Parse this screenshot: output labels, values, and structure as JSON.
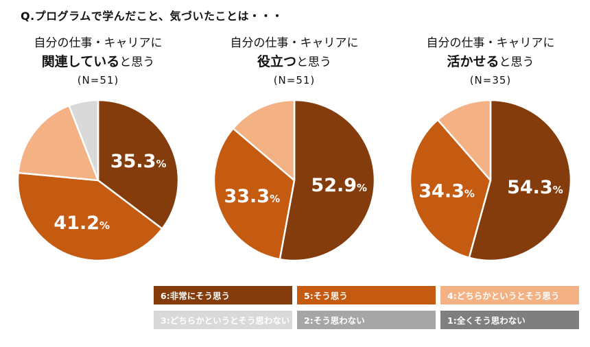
{
  "page": {
    "title": "Q.プログラムで学んだこと、気づいたことは・・・"
  },
  "chart_data": [
    {
      "type": "pie",
      "title_line1": "自分の仕事・キャリアに",
      "title_bold": "関連している",
      "title_suffix": "と思う",
      "n_label": "(N=51)",
      "n": 51,
      "start_angle": "top",
      "direction": "clockwise",
      "slices": [
        {
          "legend": "6:非常にそう思う",
          "value": 35.3,
          "display": "35.3",
          "color": "#843C0C"
        },
        {
          "legend": "5:そう思う",
          "value": 41.2,
          "display": "41.2",
          "color": "#C55A11"
        },
        {
          "legend": "4:どちらかというとそう思う",
          "value": 17.6,
          "color": "#F4B183"
        },
        {
          "legend": "3:どちらかというとそう思わない",
          "value": 5.9,
          "color": "#D9D9D9"
        }
      ]
    },
    {
      "type": "pie",
      "title_line1": "自分の仕事・キャリアに",
      "title_bold": "役立つ",
      "title_suffix": "と思う",
      "n_label": "(N=51)",
      "n": 51,
      "start_angle": "top",
      "direction": "clockwise",
      "slices": [
        {
          "legend": "6:非常にそう思う",
          "value": 52.9,
          "display": "52.9",
          "color": "#843C0C"
        },
        {
          "legend": "5:そう思う",
          "value": 33.3,
          "display": "33.3",
          "color": "#C55A11"
        },
        {
          "legend": "4:どちらかというとそう思う",
          "value": 13.8,
          "color": "#F4B183"
        }
      ]
    },
    {
      "type": "pie",
      "title_line1": "自分の仕事・キャリアに",
      "title_bold": "活かせる",
      "title_suffix": "と思う",
      "n_label": "(N=35)",
      "n": 35,
      "start_angle": "top",
      "direction": "clockwise",
      "slices": [
        {
          "legend": "6:非常にそう思う",
          "value": 54.3,
          "display": "54.3",
          "color": "#843C0C"
        },
        {
          "legend": "5:そう思う",
          "value": 34.3,
          "display": "34.3",
          "color": "#C55A11"
        },
        {
          "legend": "4:どちらかというとそう思う",
          "value": 11.4,
          "color": "#F4B183"
        }
      ]
    }
  ],
  "legend": {
    "items": [
      {
        "key": "6",
        "label": "6:非常にそう思う",
        "color": "#843C0C",
        "text_color": "#FFFFFF"
      },
      {
        "key": "5",
        "label": "5:そう思う",
        "color": "#C55A11",
        "text_color": "#FFFFFF"
      },
      {
        "key": "4",
        "label": "4:どちらかというとそう思う",
        "color": "#F4B183",
        "text_color": "#FFFFFF"
      },
      {
        "key": "3",
        "label": "3:どちらかというとそう思わない",
        "color": "#D9D9D9",
        "text_color": "#FFFFFF"
      },
      {
        "key": "2",
        "label": "2:そう思わない",
        "color": "#A6A6A6",
        "text_color": "#FFFFFF"
      },
      {
        "key": "1",
        "label": "1:全くそう思わない",
        "color": "#7F7F7F",
        "text_color": "#FFFFFF"
      }
    ]
  },
  "colors": {
    "background": "#FFFFFF",
    "pie_border": "#FFFFFF",
    "label_text": "#FFFFFF",
    "title_text": "#111111"
  }
}
